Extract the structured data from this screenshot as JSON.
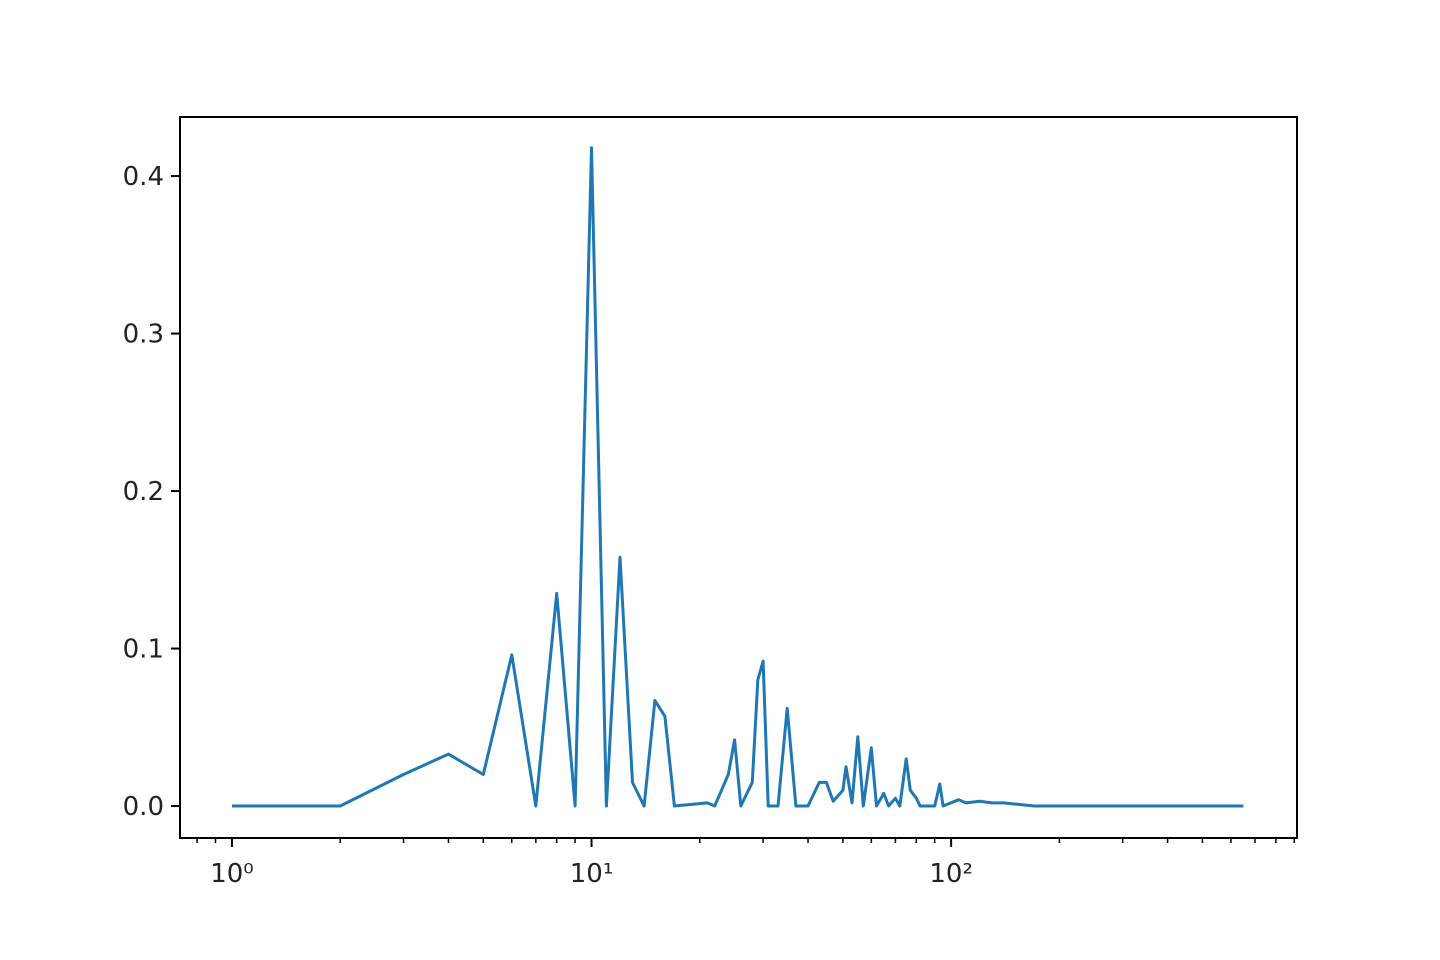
{
  "chart_data": {
    "type": "line",
    "log_x": true,
    "x": [
      1,
      2,
      3,
      4,
      5,
      6,
      7,
      8,
      9,
      10,
      11,
      12,
      13,
      14,
      15,
      16,
      17,
      21,
      22,
      24,
      25,
      26,
      28,
      29,
      30,
      31,
      33,
      35,
      37,
      40,
      43,
      45,
      47,
      50,
      51,
      53,
      55,
      57,
      60,
      62,
      65,
      67,
      70,
      72,
      75,
      77,
      80,
      82,
      90,
      93,
      95,
      105,
      110,
      120,
      130,
      140,
      170,
      300,
      650
    ],
    "series": [
      {
        "color": "#1f77b4",
        "values": [
          0.0,
          0.0,
          0.02,
          0.033,
          0.02,
          0.096,
          0.0,
          0.135,
          0.0,
          0.418,
          0.0,
          0.158,
          0.015,
          0.0,
          0.067,
          0.057,
          0.0,
          0.002,
          0.0,
          0.02,
          0.042,
          0.0,
          0.015,
          0.08,
          0.092,
          0.0,
          0.0,
          0.062,
          0.0,
          0.0,
          0.015,
          0.015,
          0.003,
          0.01,
          0.025,
          0.002,
          0.044,
          0.0,
          0.037,
          0.0,
          0.008,
          0.0,
          0.005,
          0.0,
          0.03,
          0.01,
          0.005,
          0.0,
          0.0,
          0.014,
          0.0,
          0.004,
          0.002,
          0.003,
          0.002,
          0.002,
          0.0,
          0.0,
          0.0
        ]
      }
    ],
    "xlim": [
      0.717,
      916
    ],
    "ylim": [
      -0.0203,
      0.4375
    ],
    "xticks": [
      {
        "value": 1,
        "label": "10⁰"
      },
      {
        "value": 10,
        "label": "10¹"
      },
      {
        "value": 100,
        "label": "10²"
      }
    ],
    "xminorticks": [
      0.8,
      0.9,
      2,
      3,
      4,
      5,
      6,
      7,
      8,
      9,
      20,
      30,
      40,
      50,
      60,
      70,
      80,
      90,
      200,
      300,
      400,
      500,
      600,
      700,
      800,
      900
    ],
    "yticks": [
      {
        "value": 0,
        "label": "0.0"
      },
      0.1,
      0.2,
      0.3,
      0.4
    ]
  }
}
